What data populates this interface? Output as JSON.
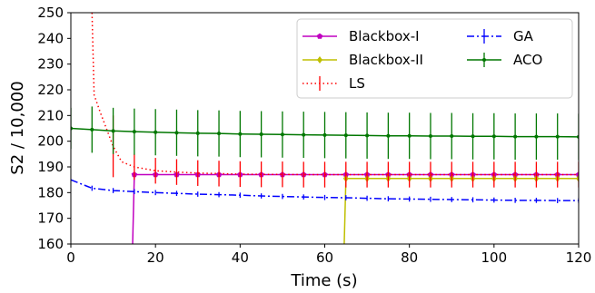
{
  "chart_data": {
    "type": "line",
    "title": "",
    "xlabel": "Time (s)",
    "ylabel": "S2 / 10,000",
    "xlim": [
      0,
      120
    ],
    "ylim": [
      160,
      250
    ],
    "xticks": [
      0,
      20,
      40,
      60,
      80,
      100,
      120
    ],
    "yticks": [
      160,
      170,
      180,
      190,
      200,
      210,
      220,
      230,
      240,
      250
    ],
    "grid": false,
    "legend_position": "top-right",
    "series": [
      {
        "name": "Blackbox-I",
        "color": "#c000c0",
        "line_style": "solid",
        "marker": "pentagon",
        "x": [
          14.6,
          15,
          20,
          25,
          30,
          35,
          40,
          45,
          50,
          55,
          60,
          65,
          70,
          75,
          80,
          85,
          90,
          95,
          100,
          105,
          110,
          115,
          120
        ],
        "y": [
          160,
          187,
          187,
          187,
          187,
          187,
          187,
          187,
          187,
          187,
          187,
          187,
          187,
          187,
          187,
          187,
          187,
          187,
          187,
          187,
          187,
          187,
          187
        ],
        "error": [
          0,
          0.5,
          0.5,
          0.5,
          0.5,
          0.5,
          0.5,
          0.5,
          0.5,
          0.5,
          0.5,
          0.5,
          0.5,
          0.5,
          0.5,
          0.5,
          0.5,
          0.5,
          0.5,
          0.5,
          0.5,
          0.5,
          0.5
        ]
      },
      {
        "name": "Blackbox-II",
        "color": "#bfbf00",
        "line_style": "solid",
        "marker": "diamond",
        "x": [
          64.6,
          65,
          70,
          75,
          80,
          85,
          90,
          95,
          100,
          105,
          110,
          115,
          120
        ],
        "y": [
          160,
          185.5,
          185.5,
          185.5,
          185.5,
          185.5,
          185.5,
          185.5,
          185.5,
          185.5,
          185.5,
          185.5,
          185.5
        ],
        "error": [
          0,
          1.2,
          1.2,
          1.2,
          1.2,
          1.2,
          1.2,
          1.2,
          1.2,
          1.2,
          1.2,
          1.2,
          1.2
        ]
      },
      {
        "name": "LS",
        "color": "#ff0000",
        "line_style": "dotted",
        "marker": "none",
        "x": [
          5,
          5.5,
          7,
          10,
          12,
          15,
          20,
          25,
          30,
          35,
          40,
          45,
          50,
          55,
          60,
          65,
          70,
          75,
          80,
          85,
          90,
          95,
          100,
          105,
          110,
          115,
          120
        ],
        "y": [
          250,
          218,
          211,
          198,
          192,
          190,
          188.5,
          188,
          187.6,
          187.4,
          187.2,
          187.1,
          187.1,
          187,
          187,
          187,
          187,
          187,
          187,
          187,
          187,
          187,
          187,
          187,
          187,
          187,
          187
        ],
        "error": [
          0,
          12,
          0,
          12,
          0,
          5,
          5,
          5,
          5,
          5,
          5,
          5,
          5,
          5,
          5,
          5,
          5,
          5,
          5,
          5,
          5,
          5,
          5,
          5,
          5,
          5,
          5
        ],
        "error_x": [
          5,
          10,
          15,
          20,
          25,
          30,
          35,
          40,
          45,
          50,
          55,
          60,
          65,
          70,
          75,
          80,
          85,
          90,
          95,
          100,
          105,
          110,
          115,
          120
        ]
      },
      {
        "name": "GA",
        "color": "#0000ff",
        "line_style": "dashdot",
        "marker": "none",
        "x": [
          0,
          5,
          10,
          15,
          20,
          25,
          30,
          35,
          40,
          45,
          50,
          55,
          60,
          65,
          70,
          75,
          80,
          85,
          90,
          95,
          100,
          105,
          110,
          115,
          120
        ],
        "y": [
          185,
          181.7,
          180.8,
          180.4,
          180,
          179.7,
          179.4,
          179.2,
          179,
          178.7,
          178.5,
          178.3,
          178.1,
          178,
          177.8,
          177.6,
          177.5,
          177.4,
          177.3,
          177.2,
          177.1,
          177,
          177,
          176.9,
          176.9
        ],
        "error": [
          0,
          1,
          1,
          1,
          1,
          1,
          1,
          1,
          1,
          1,
          1,
          1,
          1,
          1,
          1,
          1,
          1,
          1,
          1,
          1,
          1,
          1,
          1,
          1,
          1
        ]
      },
      {
        "name": "ACO",
        "color": "#007700",
        "line_style": "solid",
        "marker": "point",
        "x": [
          0,
          5,
          10,
          15,
          20,
          25,
          30,
          35,
          40,
          45,
          50,
          55,
          60,
          65,
          70,
          75,
          80,
          85,
          90,
          95,
          100,
          105,
          110,
          115,
          120
        ],
        "y": [
          205,
          204.5,
          204,
          203.7,
          203.5,
          203.3,
          203.1,
          203,
          202.8,
          202.7,
          202.6,
          202.5,
          202.4,
          202.3,
          202.2,
          202.1,
          202.1,
          202,
          202,
          201.9,
          201.9,
          201.8,
          201.8,
          201.8,
          201.7
        ],
        "error": [
          8,
          9,
          9,
          9,
          9,
          9,
          9,
          9,
          9,
          9,
          9,
          9,
          9,
          9,
          9,
          9,
          9,
          9,
          9,
          9,
          9,
          9,
          9,
          9,
          9
        ]
      }
    ]
  }
}
